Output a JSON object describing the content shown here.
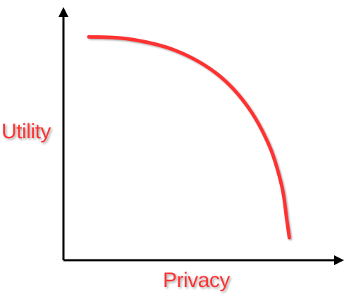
{
  "chart_data": {
    "type": "line",
    "title": "",
    "xlabel": "Privacy",
    "ylabel": "Utility",
    "xlim": [
      0,
      1
    ],
    "ylim": [
      0,
      1
    ],
    "grid": false,
    "legend": "none",
    "series": [
      {
        "color": "#ff3333",
        "shape": "concave-down tradeoff curve",
        "x": [
          0.1,
          0.26,
          0.44,
          0.6,
          0.72,
          0.81,
          0.86,
          0.88,
          0.89
        ],
        "y": [
          0.99,
          0.98,
          0.93,
          0.83,
          0.69,
          0.51,
          0.33,
          0.18,
          0.1
        ]
      }
    ]
  },
  "colors": {
    "axis": "#000000",
    "accent": "#ff3333"
  }
}
